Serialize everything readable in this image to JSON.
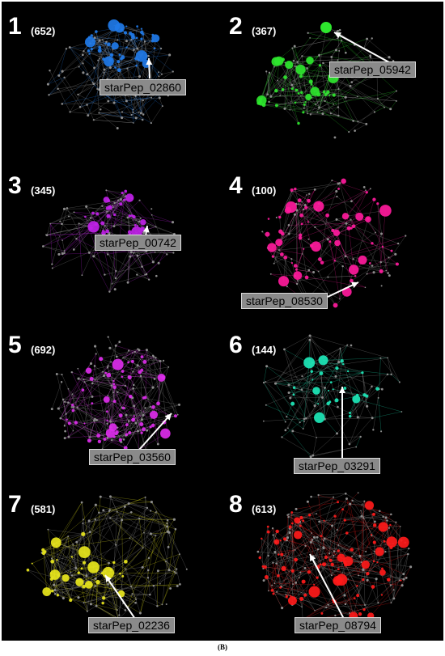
{
  "figure_caption": "(B)",
  "panels": [
    {
      "number": "1",
      "count": "(652)",
      "label": "starPep_02860",
      "color": "#1f7ae8"
    },
    {
      "number": "2",
      "count": "(367)",
      "label": "starPep_05942",
      "color": "#2ee62e"
    },
    {
      "number": "3",
      "count": "(345)",
      "label": "starPep_00742",
      "color": "#c021e8"
    },
    {
      "number": "4",
      "count": "(100)",
      "label": "starPep_08530",
      "color": "#ff1a9c"
    },
    {
      "number": "5",
      "count": "(692)",
      "label": "starPep_03560",
      "color": "#dc2cea"
    },
    {
      "number": "6",
      "count": "(144)",
      "label": "starPep_03291",
      "color": "#1de8b8"
    },
    {
      "number": "7",
      "count": "(581)",
      "label": "starPep_02236",
      "color": "#e8e61c"
    },
    {
      "number": "8",
      "count": "(613)",
      "label": "starPep_08794",
      "color": "#ff1a1a"
    }
  ]
}
